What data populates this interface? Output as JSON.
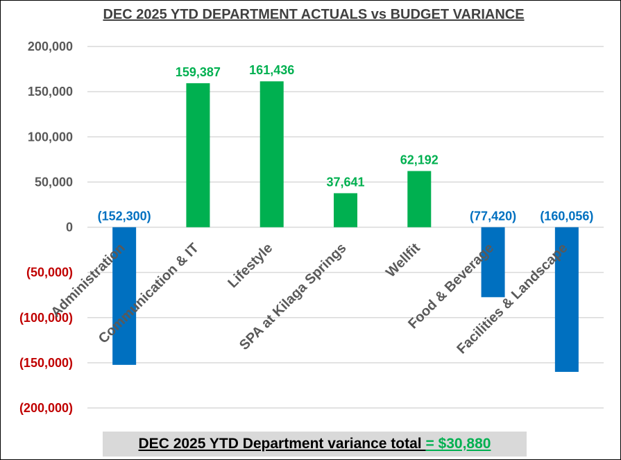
{
  "chart_data": {
    "type": "bar",
    "title": "DEC 2025 YTD DEPARTMENT ACTUALS vs BUDGET VARIANCE",
    "categories": [
      "Administration",
      "Communication & IT",
      "Lifestyle",
      "SPA at Kilaga Springs",
      "Wellfit",
      "Food & Beverage",
      "Facilities & Landscape"
    ],
    "values": [
      -152300,
      159387,
      161436,
      37641,
      62192,
      -77420,
      -160056
    ],
    "data_labels": [
      "(152,300)",
      "159,387",
      "161,436",
      "37,641",
      "62,192",
      "(77,420)",
      "(160,056)"
    ],
    "ylim": [
      -200000,
      200000
    ],
    "yticks": [
      200000,
      150000,
      100000,
      50000,
      0,
      -50000,
      -100000,
      -150000,
      -200000
    ],
    "ytick_labels": [
      "200,000",
      "150,000",
      "100,000",
      "50,000",
      "0",
      "(50,000)",
      "(100,000)",
      "(150,000)",
      "(200,000)"
    ],
    "xlabel": "",
    "ylabel": "",
    "grid": true,
    "colors": {
      "positive": "#00b050",
      "negative": "#0070c0",
      "positive_tick": "#595959",
      "negative_tick": "#c00000",
      "gridline": "#d9d9d9"
    }
  },
  "total": {
    "label": "DEC 2025 YTD Department variance total ",
    "value": "= $30,880",
    "value_color": "#00b050"
  }
}
